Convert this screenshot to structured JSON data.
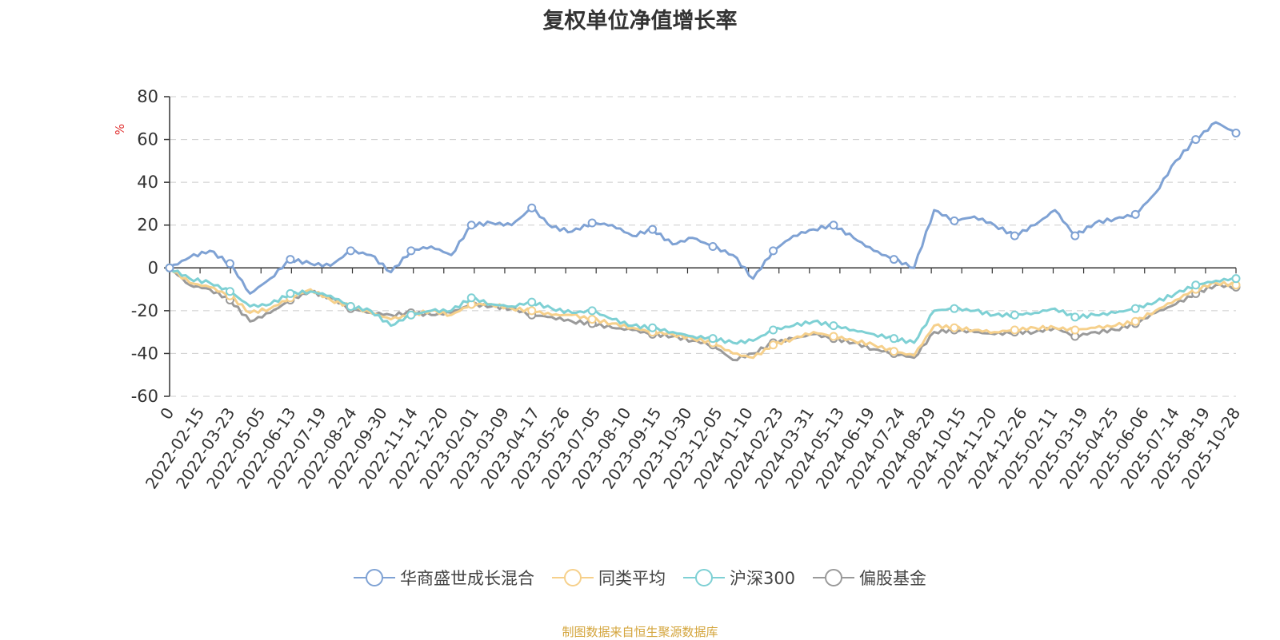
{
  "chart_data": {
    "type": "line",
    "title": "复权单位净值增长率",
    "ylabel": "%",
    "ylim": [
      -60,
      80
    ],
    "yticks": [
      -60,
      -40,
      -20,
      0,
      20,
      40,
      60,
      80
    ],
    "grid": true,
    "legend_position": "bottom-center",
    "x_ticks": [
      "0",
      "2022-02-15",
      "2022-03-23",
      "2022-05-05",
      "2022-06-13",
      "2022-07-19",
      "2022-08-24",
      "2022-09-30",
      "2022-11-14",
      "2022-12-20",
      "2023-02-01",
      "2023-03-09",
      "2023-04-17",
      "2023-05-26",
      "2023-07-05",
      "2023-08-10",
      "2023-09-15",
      "2023-10-30",
      "2023-12-05",
      "2024-01-10",
      "2024-02-23",
      "2024-03-31",
      "2024-05-13",
      "2024-06-19",
      "2024-07-24",
      "2024-08-29",
      "2024-10-15",
      "2024-11-20",
      "2024-12-26",
      "2025-02-11",
      "2025-03-19",
      "2025-04-25",
      "2025-06-06",
      "2025-07-14",
      "2025-08-19",
      "2025-10-28"
    ],
    "series": [
      {
        "name": "华商盛世成长混合",
        "color": "#7fa2d4",
        "values": [
          0,
          5,
          8,
          2,
          -12,
          -5,
          4,
          2,
          1,
          8,
          6,
          -2,
          8,
          10,
          6,
          20,
          21,
          20,
          28,
          19,
          17,
          21,
          20,
          15,
          18,
          11,
          14,
          10,
          6,
          -5,
          8,
          15,
          18,
          20,
          14,
          8,
          4,
          0,
          27,
          22,
          24,
          20,
          15,
          20,
          27,
          15,
          21,
          23,
          25,
          35,
          50,
          60,
          68,
          63
        ]
      },
      {
        "name": "同类平均",
        "color": "#f6d08b",
        "values": [
          0,
          -7,
          -9,
          -13,
          -21,
          -19,
          -14,
          -10,
          -15,
          -18,
          -21,
          -24,
          -22,
          -20,
          -22,
          -17,
          -17,
          -19,
          -20,
          -22,
          -22,
          -24,
          -26,
          -28,
          -30,
          -31,
          -33,
          -35,
          -40,
          -42,
          -36,
          -33,
          -30,
          -32,
          -34,
          -36,
          -39,
          -41,
          -27,
          -28,
          -29,
          -30,
          -29,
          -28,
          -28,
          -29,
          -28,
          -27,
          -25,
          -20,
          -15,
          -10,
          -7,
          -8
        ]
      },
      {
        "name": "沪深300",
        "color": "#7ed0d4",
        "values": [
          0,
          -5,
          -7,
          -11,
          -18,
          -17,
          -12,
          -11,
          -13,
          -18,
          -20,
          -27,
          -22,
          -20,
          -20,
          -14,
          -17,
          -18,
          -16,
          -19,
          -21,
          -20,
          -24,
          -27,
          -28,
          -30,
          -32,
          -33,
          -35,
          -34,
          -29,
          -27,
          -25,
          -27,
          -29,
          -31,
          -33,
          -35,
          -20,
          -19,
          -20,
          -22,
          -22,
          -21,
          -19,
          -23,
          -22,
          -21,
          -19,
          -16,
          -12,
          -8,
          -6,
          -5
        ]
      },
      {
        "name": "偏股基金",
        "color": "#9a9a9a",
        "values": [
          0,
          -8,
          -10,
          -15,
          -25,
          -21,
          -15,
          -11,
          -14,
          -19,
          -21,
          -22,
          -21,
          -22,
          -21,
          -17,
          -18,
          -19,
          -22,
          -23,
          -25,
          -26,
          -28,
          -29,
          -31,
          -32,
          -34,
          -36,
          -43,
          -40,
          -35,
          -33,
          -31,
          -33,
          -35,
          -38,
          -40,
          -42,
          -30,
          -29,
          -30,
          -31,
          -30,
          -30,
          -28,
          -32,
          -30,
          -29,
          -26,
          -21,
          -17,
          -12,
          -8,
          -9
        ]
      }
    ]
  },
  "source": "制图数据来自恒生聚源数据库"
}
